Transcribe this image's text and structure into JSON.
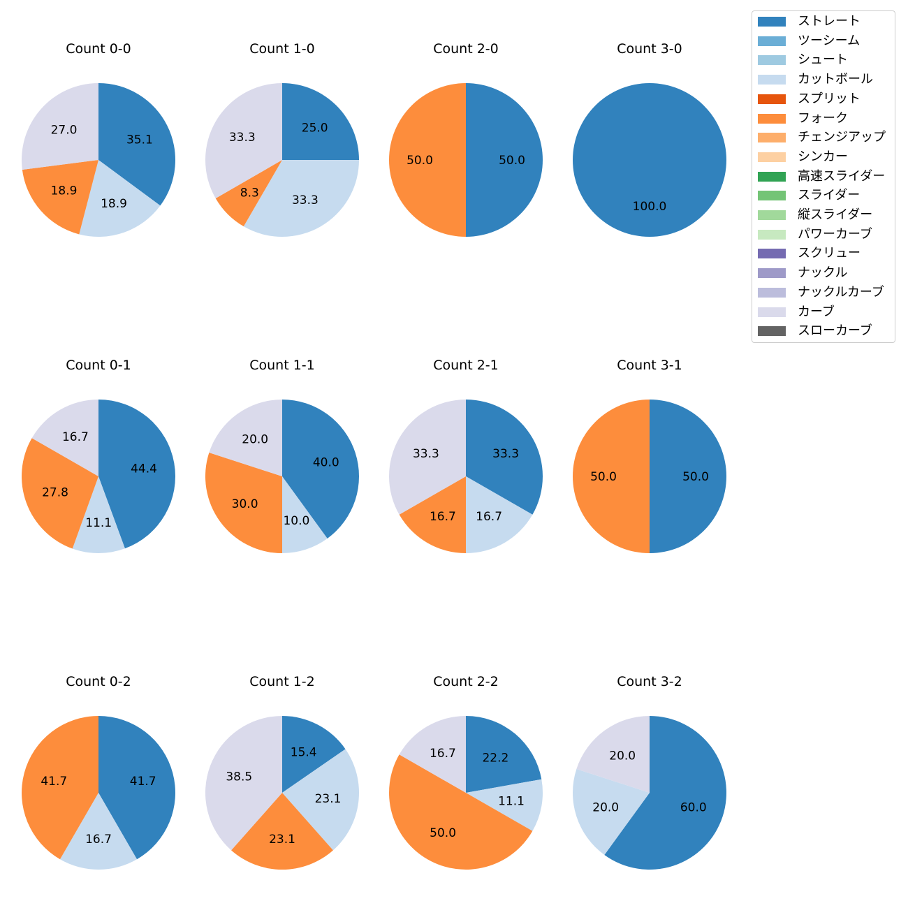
{
  "chart_data": [
    {
      "type": "pie",
      "title": "Count 0-0",
      "labels": [
        "ストレート",
        "カットボール",
        "フォーク",
        "カーブ"
      ],
      "values": [
        35.1,
        18.9,
        18.9,
        27.0
      ]
    },
    {
      "type": "pie",
      "title": "Count 1-0",
      "labels": [
        "ストレート",
        "カットボール",
        "フォーク",
        "カーブ"
      ],
      "values": [
        25.0,
        33.3,
        8.3,
        33.3
      ]
    },
    {
      "type": "pie",
      "title": "Count 2-0",
      "labels": [
        "ストレート",
        "フォーク"
      ],
      "values": [
        50.0,
        50.0
      ]
    },
    {
      "type": "pie",
      "title": "Count 3-0",
      "labels": [
        "ストレート"
      ],
      "values": [
        100.0
      ]
    },
    {
      "type": "pie",
      "title": "Count 0-1",
      "labels": [
        "ストレート",
        "カットボール",
        "フォーク",
        "カーブ"
      ],
      "values": [
        44.4,
        11.1,
        27.8,
        16.7
      ]
    },
    {
      "type": "pie",
      "title": "Count 1-1",
      "labels": [
        "ストレート",
        "カットボール",
        "フォーク",
        "カーブ"
      ],
      "values": [
        40.0,
        10.0,
        30.0,
        20.0
      ]
    },
    {
      "type": "pie",
      "title": "Count 2-1",
      "labels": [
        "ストレート",
        "カットボール",
        "フォーク",
        "カーブ"
      ],
      "values": [
        33.3,
        16.7,
        16.7,
        33.3
      ]
    },
    {
      "type": "pie",
      "title": "Count 3-1",
      "labels": [
        "ストレート",
        "フォーク"
      ],
      "values": [
        50.0,
        50.0
      ]
    },
    {
      "type": "pie",
      "title": "Count 0-2",
      "labels": [
        "ストレート",
        "カットボール",
        "フォーク"
      ],
      "values": [
        41.7,
        16.7,
        41.7
      ]
    },
    {
      "type": "pie",
      "title": "Count 1-2",
      "labels": [
        "ストレート",
        "カットボール",
        "フォーク",
        "カーブ"
      ],
      "values": [
        15.4,
        23.1,
        23.1,
        38.5
      ]
    },
    {
      "type": "pie",
      "title": "Count 2-2",
      "labels": [
        "ストレート",
        "カットボール",
        "フォーク",
        "カーブ"
      ],
      "values": [
        22.2,
        11.1,
        50.0,
        16.7
      ]
    },
    {
      "type": "pie",
      "title": "Count 3-2",
      "labels": [
        "ストレート",
        "カットボール",
        "カーブ"
      ],
      "values": [
        60.0,
        20.0,
        20.0
      ]
    }
  ],
  "legend": {
    "position": "top-right",
    "items": [
      {
        "label": "ストレート",
        "color": "#3182bd"
      },
      {
        "label": "ツーシーム",
        "color": "#6baed6"
      },
      {
        "label": "シュート",
        "color": "#9ecae1"
      },
      {
        "label": "カットボール",
        "color": "#c6dbef"
      },
      {
        "label": "スプリット",
        "color": "#e6550d"
      },
      {
        "label": "フォーク",
        "color": "#fd8d3c"
      },
      {
        "label": "チェンジアップ",
        "color": "#fdae6b"
      },
      {
        "label": "シンカー",
        "color": "#fdd0a2"
      },
      {
        "label": "高速スライダー",
        "color": "#31a354"
      },
      {
        "label": "スライダー",
        "color": "#74c476"
      },
      {
        "label": "縦スライダー",
        "color": "#a1d99b"
      },
      {
        "label": "パワーカーブ",
        "color": "#c7e9c0"
      },
      {
        "label": "スクリュー",
        "color": "#756bb1"
      },
      {
        "label": "ナックル",
        "color": "#9e9ac8"
      },
      {
        "label": "ナックルカーブ",
        "color": "#bcbddc"
      },
      {
        "label": "カーブ",
        "color": "#dadaeb"
      },
      {
        "label": "スローカーブ",
        "color": "#636363"
      }
    ]
  }
}
